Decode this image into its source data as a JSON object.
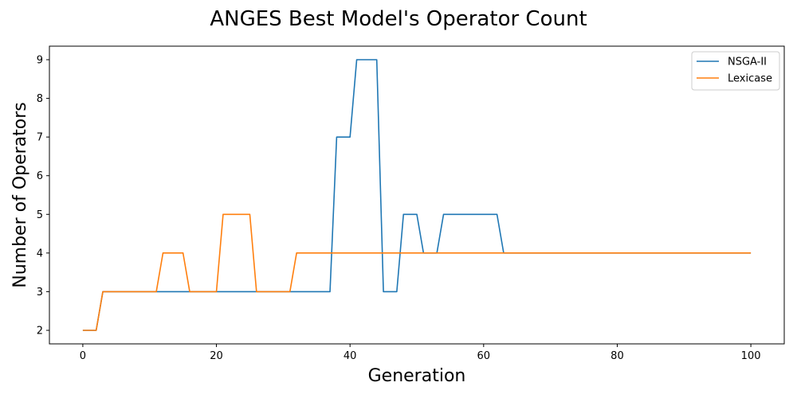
{
  "chart_data": {
    "type": "line",
    "title": "ANGES Best Model's Operator Count",
    "xlabel": "Generation",
    "ylabel": "Number of Operators",
    "xlim": [
      -5,
      105
    ],
    "ylim": [
      1.65,
      9.35
    ],
    "xticks": [
      0,
      20,
      40,
      60,
      80,
      100
    ],
    "yticks": [
      2,
      3,
      4,
      5,
      6,
      7,
      8,
      9
    ],
    "grid": false,
    "legend_position": "top-right",
    "series": [
      {
        "name": "NSGA-II",
        "color": "#1f77b4",
        "x": [
          0,
          2,
          3,
          37,
          38,
          40,
          41,
          44,
          45,
          47,
          48,
          50,
          51,
          53,
          54,
          62,
          63,
          100
        ],
        "y": [
          2,
          2,
          3,
          3,
          7,
          7,
          9,
          9,
          3,
          3,
          5,
          5,
          4,
          4,
          5,
          5,
          4,
          4
        ]
      },
      {
        "name": "Lexicase",
        "color": "#ff7f0e",
        "x": [
          0,
          2,
          3,
          11,
          12,
          15,
          16,
          20,
          21,
          25,
          26,
          31,
          32,
          100
        ],
        "y": [
          2,
          2,
          3,
          3,
          4,
          4,
          3,
          3,
          5,
          5,
          3,
          3,
          4,
          4
        ]
      }
    ]
  }
}
